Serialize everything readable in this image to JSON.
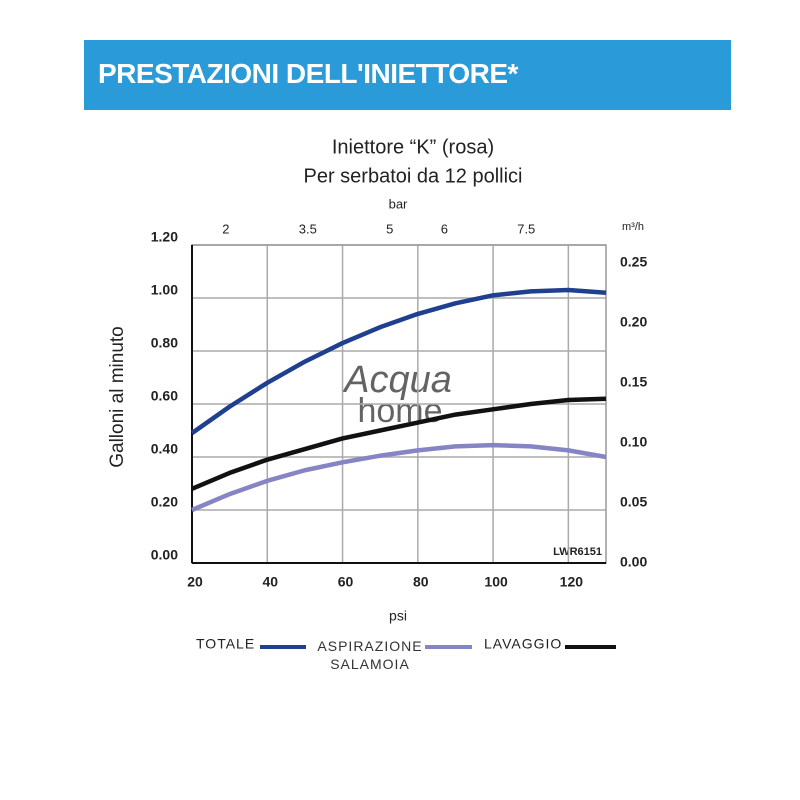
{
  "header": {
    "title": "PRESTAZIONI DELL'INIETTORE*"
  },
  "chart_data": {
    "type": "line",
    "title": "Iniettore “K” (rosa)",
    "subtitle": "Per serbatoi da 12 pollici",
    "xlabel": "psi",
    "ylabel": "Galloni al minuto",
    "x2label": "bar",
    "y2label": "m³/h",
    "annotation": "LWR6151",
    "watermark": [
      "Acqua",
      "home"
    ],
    "x": [
      20,
      30,
      40,
      50,
      60,
      70,
      80,
      90,
      100,
      110,
      120,
      130
    ],
    "xlim": [
      20,
      130
    ],
    "xticks": [
      20,
      40,
      60,
      80,
      100,
      120
    ],
    "x2lim": [
      1.38,
      8.96
    ],
    "x2ticks": [
      2,
      3.5,
      5,
      6,
      7.5
    ],
    "ylim": [
      0,
      1.2
    ],
    "yticks": [
      {
        "value": 0,
        "label": "0.00"
      },
      {
        "value": 0.2,
        "label": "0.20"
      },
      {
        "value": 0.4,
        "label": "0.40"
      },
      {
        "value": 0.6,
        "label": "0.60"
      },
      {
        "value": 0.8,
        "label": "0.80"
      },
      {
        "value": 1,
        "label": "1.00"
      },
      {
        "value": 1.2,
        "label": "1.20"
      }
    ],
    "y2lim": [
      0,
      0.265
    ],
    "y2ticks": [
      {
        "value": 0,
        "label": "0.00"
      },
      {
        "value": 0.05,
        "label": "0.05"
      },
      {
        "value": 0.1,
        "label": "0.10"
      },
      {
        "value": 0.15,
        "label": "0.15"
      },
      {
        "value": 0.2,
        "label": "0.20"
      },
      {
        "value": 0.25,
        "label": "0.25"
      }
    ],
    "grid": true,
    "series": [
      {
        "name": "TOTALE",
        "color": "#1f3f8f",
        "values": [
          0.49,
          0.59,
          0.68,
          0.76,
          0.83,
          0.89,
          0.94,
          0.98,
          1.01,
          1.025,
          1.03,
          1.02
        ]
      },
      {
        "name": "ASPIRAZIONE SALAMOIA",
        "color": "#8585c6",
        "values": [
          0.2,
          0.26,
          0.31,
          0.35,
          0.38,
          0.405,
          0.425,
          0.44,
          0.445,
          0.44,
          0.425,
          0.4
        ]
      },
      {
        "name": "LAVAGGIO",
        "color": "#111111",
        "values": [
          0.28,
          0.34,
          0.39,
          0.43,
          0.47,
          0.5,
          0.53,
          0.56,
          0.58,
          0.6,
          0.615,
          0.62
        ]
      }
    ]
  }
}
